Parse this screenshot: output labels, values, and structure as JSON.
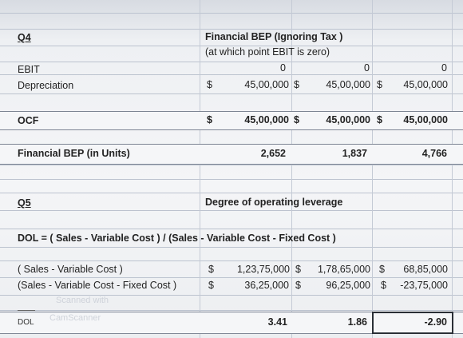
{
  "q4": {
    "label": "Q4",
    "title": "Financial BEP (Ignoring Tax )",
    "subtitle": "(at which point EBIT is zero)",
    "rows": {
      "ebit": {
        "label": "EBIT",
        "values": [
          "0",
          "0",
          "0"
        ]
      },
      "depreciation": {
        "label": "Depreciation",
        "values": [
          "45,00,000",
          "45,00,000",
          "45,00,000"
        ]
      },
      "ocf": {
        "label": "OCF",
        "values": [
          "45,00,000",
          "45,00,000",
          "45,00,000"
        ]
      },
      "bep": {
        "label": "Financial BEP (in Units)",
        "values": [
          "2,652",
          "1,837",
          "4,766"
        ]
      }
    },
    "currency_symbol": "$"
  },
  "q5": {
    "label": "Q5",
    "title": "Degree of operating leverage",
    "formula": "DOL = ( Sales - Variable Cost ) / (Sales - Variable Cost - Fixed Cost )",
    "rows": {
      "contribution": {
        "label": "( Sales - Variable Cost )",
        "values": [
          "1,23,75,000",
          "1,78,65,000",
          "68,85,000"
        ]
      },
      "ebit": {
        "label": "(Sales - Variable Cost - Fixed Cost )",
        "values": [
          "36,25,000",
          "96,25,000",
          "-23,75,000"
        ]
      },
      "dol": {
        "label": "DOL",
        "values": [
          "3.41",
          "1.86",
          "-2.90"
        ]
      }
    }
  },
  "watermark": {
    "line1": "Scanned with",
    "line2": "CamScanner"
  }
}
